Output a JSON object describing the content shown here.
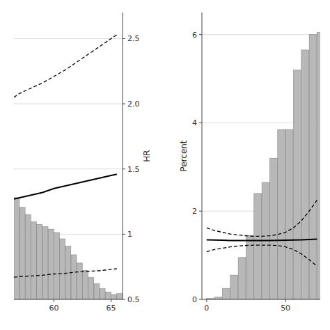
{
  "chart_data": [
    {
      "type": "bar_line",
      "ylabel": "HR",
      "xlim": [
        56.5,
        66.0
      ],
      "xticks": [
        60,
        65
      ],
      "ylim": [
        0.5,
        2.7
      ],
      "yticks": [
        0.5,
        1,
        1.5,
        {
          "value": 2,
          "label": "2.0"
        },
        2.5
      ],
      "grid": true,
      "series": [
        {
          "type": "bar",
          "color": "#b8b8b8",
          "x": [
            56.5,
            57.0,
            57.5,
            58.0,
            58.5,
            59.0,
            59.5,
            60.0,
            60.5,
            61.0,
            61.5,
            62.0,
            62.5,
            63.0,
            63.5,
            64.0,
            64.5,
            65.0,
            65.5
          ],
          "values": [
            1.28,
            1.205714285714,
            1.15,
            1.094285714286,
            1.075714285714,
            1.057142857143,
            1.038571428571,
            1.012571428571,
            0.964285714286,
            0.908571428571,
            0.841714285714,
            0.778571428571,
            0.722857142857,
            0.667142857143,
            0.618857142857,
            0.581714285714,
            0.555714285714,
            0.537142857143,
            0.544571428571
          ]
        },
        {
          "type": "line",
          "color": "#000000",
          "line_style": "solid",
          "x": [
            56.5,
            57,
            58,
            59,
            60,
            61,
            62,
            63,
            64,
            65,
            65.5
          ],
          "values": [
            1.27,
            1.28,
            1.3,
            1.32,
            1.35,
            1.37,
            1.39,
            1.41,
            1.43,
            1.45,
            1.46
          ]
        },
        {
          "type": "line",
          "color": "#000000",
          "line_style": "dashed",
          "x": [
            56.5,
            57,
            58,
            59,
            60,
            61,
            62,
            63,
            64,
            65,
            65.5
          ],
          "values": [
            2.05,
            2.08,
            2.12,
            2.16,
            2.21,
            2.26,
            2.32,
            2.38,
            2.44,
            2.5,
            2.53
          ]
        },
        {
          "type": "line",
          "color": "#000000",
          "line_style": "dashed",
          "x": [
            56.5,
            57,
            58,
            59,
            60,
            61,
            62,
            63,
            64,
            65,
            65.5
          ],
          "values": [
            0.67,
            0.675,
            0.68,
            0.685,
            0.695,
            0.7,
            0.71,
            0.715,
            0.72,
            0.73,
            0.735
          ]
        }
      ]
    },
    {
      "type": "bar_line",
      "ylabel": "Percent",
      "xlim": [
        -3,
        72
      ],
      "xticks": [
        0,
        50
      ],
      "ylim": [
        0,
        6.5
      ],
      "yticks": [
        0,
        2,
        4,
        6
      ],
      "grid": true,
      "series": [
        {
          "type": "bar",
          "color": "#b8b8b8",
          "x": [
            0,
            5,
            10,
            15,
            20,
            25,
            30,
            35,
            40,
            45,
            50,
            55,
            60,
            65,
            70
          ],
          "values": [
            0.02,
            0.05,
            0.25,
            0.55,
            0.95,
            1.45,
            2.4,
            2.65,
            3.2,
            3.85,
            3.85,
            5.2,
            5.65,
            6.0,
            6.05
          ]
        },
        {
          "type": "line",
          "color": "#000000",
          "line_style": "solid",
          "x": [
            0,
            5,
            10,
            15,
            20,
            25,
            30,
            35,
            40,
            45,
            50,
            55,
            60,
            65,
            70
          ],
          "values": [
            1.35,
            1.345,
            1.34,
            1.335,
            1.333,
            1.333,
            1.333,
            1.334,
            1.335,
            1.337,
            1.34,
            1.345,
            1.35,
            1.357,
            1.364
          ]
        },
        {
          "type": "line",
          "color": "#000000",
          "line_style": "dashed",
          "x": [
            0,
            5,
            10,
            15,
            20,
            25,
            30,
            35,
            40,
            45,
            50,
            55,
            60,
            65,
            70
          ],
          "values": [
            1.62,
            1.56,
            1.52,
            1.48,
            1.46,
            1.44,
            1.43,
            1.43,
            1.44,
            1.47,
            1.52,
            1.62,
            1.78,
            2.0,
            2.25
          ]
        },
        {
          "type": "line",
          "color": "#000000",
          "line_style": "dashed",
          "x": [
            0,
            5,
            10,
            15,
            20,
            25,
            30,
            35,
            40,
            45,
            50,
            55,
            60,
            65,
            70
          ],
          "values": [
            1.08,
            1.13,
            1.16,
            1.19,
            1.21,
            1.22,
            1.23,
            1.23,
            1.23,
            1.22,
            1.19,
            1.13,
            1.03,
            0.9,
            0.75
          ]
        }
      ]
    }
  ]
}
